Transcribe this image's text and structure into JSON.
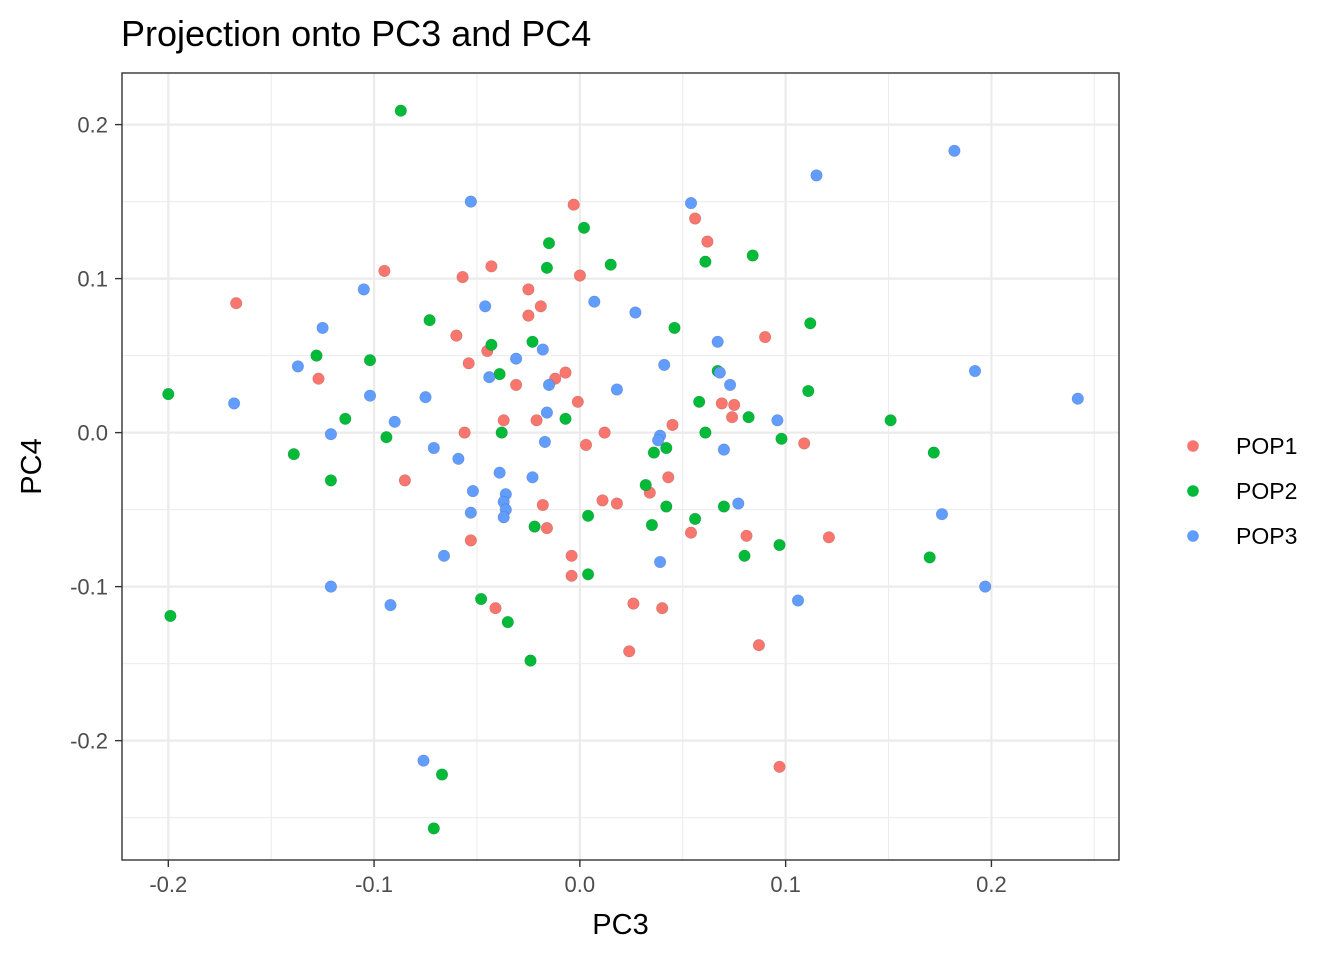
{
  "chart_data": {
    "type": "scatter",
    "title": "Projection onto PC3 and PC4",
    "xlabel": "PC3",
    "ylabel": "PC4",
    "xlim": [
      -0.2225,
      0.262
    ],
    "ylim": [
      -0.2775,
      0.2335
    ],
    "x_ticks": [
      -0.2,
      -0.1,
      0.0,
      0.1,
      0.2
    ],
    "x_tick_labels": [
      "-0.2",
      "-0.1",
      "0.0",
      "0.1",
      "0.2"
    ],
    "y_ticks": [
      -0.2,
      -0.1,
      0.0,
      0.1,
      0.2
    ],
    "y_tick_labels": [
      "-0.2",
      "-0.1",
      "0.0",
      "0.1",
      "0.2"
    ],
    "grid": true,
    "legend_position": "right",
    "series": [
      {
        "name": "POP1",
        "color": "#F8766D",
        "points": [
          [
            -0.167,
            0.084
          ],
          [
            -0.095,
            0.105
          ],
          [
            -0.057,
            0.101
          ],
          [
            -0.043,
            0.108
          ],
          [
            -0.06,
            0.063
          ],
          [
            -0.045,
            0.053
          ],
          [
            -0.054,
            0.045
          ],
          [
            -0.127,
            0.035
          ],
          [
            -0.025,
            0.093
          ],
          [
            -0.019,
            0.082
          ],
          [
            -0.025,
            0.076
          ],
          [
            -0.031,
            0.031
          ],
          [
            -0.012,
            0.035
          ],
          [
            -0.007,
            0.039
          ],
          [
            -0.003,
            0.148
          ],
          [
            0.0,
            0.102
          ],
          [
            -0.001,
            0.02
          ],
          [
            -0.037,
            0.008
          ],
          [
            -0.021,
            0.008
          ],
          [
            -0.056,
            0.0
          ],
          [
            -0.085,
            -0.031
          ],
          [
            0.003,
            -0.008
          ],
          [
            0.012,
            0.0
          ],
          [
            0.045,
            0.005
          ],
          [
            0.043,
            -0.029
          ],
          [
            0.011,
            -0.044
          ],
          [
            0.018,
            -0.046
          ],
          [
            0.034,
            -0.039
          ],
          [
            -0.016,
            -0.062
          ],
          [
            -0.018,
            -0.047
          ],
          [
            -0.053,
            -0.07
          ],
          [
            -0.004,
            -0.08
          ],
          [
            -0.004,
            -0.093
          ],
          [
            -0.041,
            -0.114
          ],
          [
            0.026,
            -0.111
          ],
          [
            0.04,
            -0.114
          ],
          [
            0.024,
            -0.142
          ],
          [
            0.056,
            0.139
          ],
          [
            0.062,
            0.124
          ],
          [
            0.09,
            0.062
          ],
          [
            0.069,
            0.019
          ],
          [
            0.075,
            0.018
          ],
          [
            0.074,
            0.01
          ],
          [
            0.054,
            -0.065
          ],
          [
            0.081,
            -0.067
          ],
          [
            0.109,
            -0.007
          ],
          [
            0.121,
            -0.068
          ],
          [
            0.087,
            -0.138
          ],
          [
            0.097,
            -0.217
          ]
        ]
      },
      {
        "name": "POP2",
        "color": "#00BA38",
        "points": [
          [
            -0.087,
            0.209
          ],
          [
            -0.102,
            0.047
          ],
          [
            -0.128,
            0.05
          ],
          [
            -0.073,
            0.073
          ],
          [
            -0.043,
            0.057
          ],
          [
            -0.039,
            0.038
          ],
          [
            -0.114,
            0.009
          ],
          [
            -0.094,
            -0.003
          ],
          [
            -0.038,
            0.0
          ],
          [
            -0.139,
            -0.014
          ],
          [
            -0.121,
            -0.031
          ],
          [
            -0.2,
            0.025
          ],
          [
            -0.199,
            -0.119
          ],
          [
            -0.015,
            0.123
          ],
          [
            -0.016,
            0.107
          ],
          [
            0.002,
            0.133
          ],
          [
            0.015,
            0.109
          ],
          [
            -0.023,
            0.059
          ],
          [
            -0.007,
            0.009
          ],
          [
            -0.022,
            -0.061
          ],
          [
            0.004,
            -0.054
          ],
          [
            0.004,
            -0.092
          ],
          [
            -0.048,
            -0.108
          ],
          [
            -0.035,
            -0.123
          ],
          [
            -0.024,
            -0.148
          ],
          [
            -0.067,
            -0.222
          ],
          [
            -0.071,
            -0.257
          ],
          [
            0.061,
            0.111
          ],
          [
            0.084,
            0.115
          ],
          [
            0.046,
            0.068
          ],
          [
            0.112,
            0.071
          ],
          [
            0.067,
            0.04
          ],
          [
            0.058,
            0.02
          ],
          [
            0.082,
            0.01
          ],
          [
            0.111,
            0.027
          ],
          [
            0.151,
            0.008
          ],
          [
            0.172,
            -0.013
          ],
          [
            0.061,
            0.0
          ],
          [
            0.098,
            -0.004
          ],
          [
            0.036,
            -0.013
          ],
          [
            0.042,
            -0.01
          ],
          [
            0.032,
            -0.034
          ],
          [
            0.042,
            -0.048
          ],
          [
            0.035,
            -0.06
          ],
          [
            0.056,
            -0.056
          ],
          [
            0.07,
            -0.048
          ],
          [
            0.08,
            -0.08
          ],
          [
            0.097,
            -0.073
          ],
          [
            0.17,
            -0.081
          ]
        ]
      },
      {
        "name": "POP3",
        "color": "#619CFF",
        "points": [
          [
            -0.053,
            0.15
          ],
          [
            -0.105,
            0.093
          ],
          [
            -0.046,
            0.082
          ],
          [
            -0.125,
            0.068
          ],
          [
            -0.137,
            0.043
          ],
          [
            -0.168,
            0.019
          ],
          [
            -0.102,
            0.024
          ],
          [
            -0.075,
            0.023
          ],
          [
            -0.044,
            0.036
          ],
          [
            -0.031,
            0.048
          ],
          [
            -0.018,
            0.054
          ],
          [
            -0.015,
            0.031
          ],
          [
            -0.016,
            0.013
          ],
          [
            -0.09,
            0.007
          ],
          [
            -0.121,
            -0.001
          ],
          [
            -0.071,
            -0.01
          ],
          [
            -0.059,
            -0.017
          ],
          [
            -0.039,
            -0.026
          ],
          [
            -0.017,
            -0.006
          ],
          [
            -0.023,
            -0.029
          ],
          [
            -0.052,
            -0.038
          ],
          [
            -0.053,
            -0.052
          ],
          [
            -0.036,
            -0.04
          ],
          [
            -0.037,
            -0.045
          ],
          [
            -0.036,
            -0.05
          ],
          [
            -0.037,
            -0.055
          ],
          [
            -0.066,
            -0.08
          ],
          [
            -0.121,
            -0.1
          ],
          [
            -0.092,
            -0.112
          ],
          [
            -0.076,
            -0.213
          ],
          [
            0.054,
            0.149
          ],
          [
            0.115,
            0.167
          ],
          [
            0.182,
            0.183
          ],
          [
            0.007,
            0.085
          ],
          [
            0.027,
            0.078
          ],
          [
            0.067,
            0.059
          ],
          [
            0.041,
            0.044
          ],
          [
            0.068,
            0.039
          ],
          [
            0.073,
            0.031
          ],
          [
            0.018,
            0.028
          ],
          [
            0.096,
            0.008
          ],
          [
            0.192,
            0.04
          ],
          [
            0.242,
            0.022
          ],
          [
            0.039,
            -0.002
          ],
          [
            0.038,
            -0.005
          ],
          [
            0.07,
            -0.011
          ],
          [
            0.077,
            -0.046
          ],
          [
            0.176,
            -0.053
          ],
          [
            0.039,
            -0.084
          ],
          [
            0.106,
            -0.109
          ],
          [
            0.197,
            -0.1
          ]
        ]
      }
    ]
  }
}
